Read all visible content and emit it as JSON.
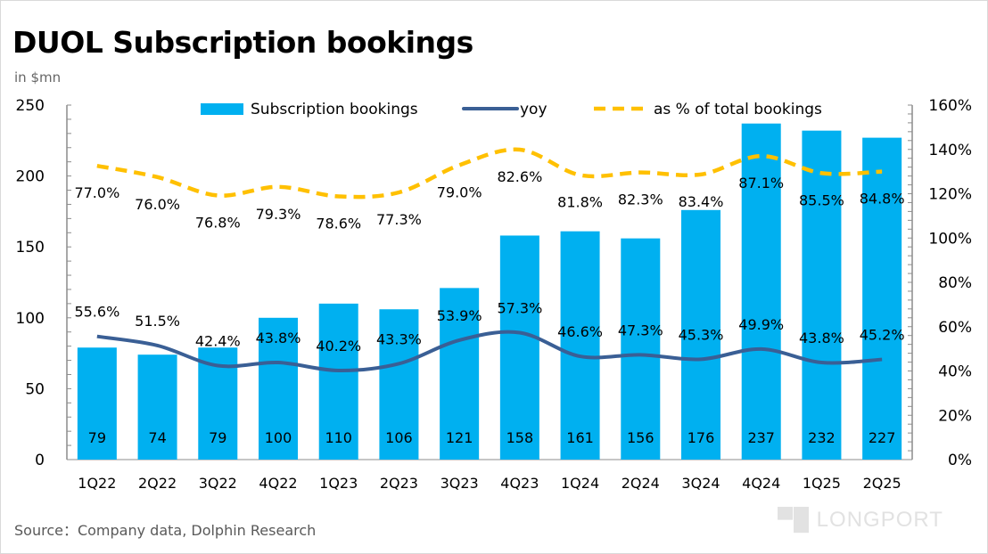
{
  "title": "DUOL Subscription bookings",
  "unit": "in $mn",
  "source": "Source：Company data, Dolphin Research",
  "logo_text": "LONGPORT",
  "colors": {
    "bar": "#00b0f0",
    "yoy": "#3a5f95",
    "share": "#ffc000"
  },
  "chart_data": {
    "type": "bar",
    "categories": [
      "1Q22",
      "2Q22",
      "3Q22",
      "4Q22",
      "1Q23",
      "2Q23",
      "3Q23",
      "4Q23",
      "1Q24",
      "2Q24",
      "3Q24",
      "4Q24",
      "1Q25",
      "2Q25"
    ],
    "series": [
      {
        "name": "Subscription bookings",
        "type": "bar",
        "axis": "left",
        "values": [
          79,
          74,
          79,
          100,
          110,
          106,
          121,
          158,
          161,
          156,
          176,
          237,
          232,
          227
        ]
      },
      {
        "name": "yoy",
        "type": "line",
        "axis": "right",
        "values": [
          55.6,
          51.5,
          42.4,
          43.8,
          40.2,
          43.3,
          53.9,
          57.3,
          46.6,
          47.3,
          45.3,
          49.9,
          43.8,
          45.2
        ]
      },
      {
        "name": "as % of total bookings",
        "type": "line",
        "style": "dashed",
        "axis": "right",
        "stacked_on": "yoy",
        "values": [
          77.0,
          76.0,
          76.8,
          79.3,
          78.6,
          77.3,
          79.0,
          82.6,
          81.8,
          82.3,
          83.4,
          87.1,
          85.5,
          84.8
        ]
      }
    ],
    "left_axis": {
      "ylim": [
        0,
        250
      ],
      "ticks": [
        "0",
        "50",
        "100",
        "150",
        "200",
        "250"
      ]
    },
    "right_axis": {
      "ylim": [
        0,
        160
      ],
      "ticks": [
        "0%",
        "20%",
        "40%",
        "60%",
        "80%",
        "100%",
        "120%",
        "140%",
        "160%"
      ]
    },
    "legend": {
      "position": "top",
      "items": [
        "Subscription bookings",
        "yoy",
        "as % of total bookings"
      ]
    },
    "grid": false
  }
}
